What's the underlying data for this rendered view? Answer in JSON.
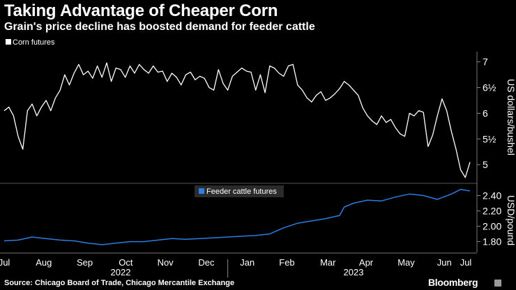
{
  "header": {
    "title": "Taking Advantage of Cheaper Corn",
    "subtitle": "Grain's price decline has boosted demand for feeder cattle"
  },
  "footer": {
    "source": "Source: Chicago Board of Trade, Chicago Mercantile Exchange",
    "brand": "Bloomberg"
  },
  "chart_data": [
    {
      "type": "line",
      "title": "Corn futures",
      "legend": "Corn futures",
      "legend_color": "#ffffff",
      "line_color": "#ffffff",
      "ylabel": "US dollars/bushel",
      "ylim": [
        4.65,
        7.2
      ],
      "yticks": [
        {
          "value": 5,
          "label": "5"
        },
        {
          "value": 5.5,
          "label": "5½"
        },
        {
          "value": 6,
          "label": "6"
        },
        {
          "value": 6.5,
          "label": "6½"
        },
        {
          "value": 7,
          "label": "7"
        }
      ],
      "xlim": [
        0,
        100
      ],
      "x": [
        0,
        1,
        2,
        3,
        4,
        5,
        6,
        7,
        8,
        9,
        10,
        11,
        12,
        13,
        14,
        15,
        16,
        17,
        18,
        19,
        20,
        21,
        22,
        23,
        24,
        25,
        26,
        27,
        28,
        29,
        30,
        31,
        32,
        33,
        34,
        35,
        36,
        37,
        38,
        39,
        40,
        41,
        42,
        43,
        44,
        45,
        46,
        47,
        48,
        49,
        50,
        51,
        52,
        53,
        54,
        55,
        56,
        57,
        58,
        59,
        60,
        61,
        62,
        63,
        64,
        65,
        66,
        67,
        68,
        69,
        70,
        71,
        72,
        73,
        74,
        75,
        76,
        77,
        78,
        79,
        80,
        81,
        82,
        83,
        84,
        85,
        86,
        87,
        88,
        89,
        90,
        91,
        92,
        93,
        94,
        95,
        96,
        97,
        98,
        99,
        100
      ],
      "values": [
        6.05,
        6.12,
        5.95,
        5.55,
        5.3,
        6.05,
        6.18,
        5.95,
        6.12,
        6.25,
        6.05,
        6.3,
        6.45,
        6.75,
        6.55,
        6.78,
        6.95,
        6.75,
        6.82,
        6.68,
        6.92,
        6.7,
        6.98,
        6.62,
        6.88,
        6.85,
        6.7,
        6.92,
        6.78,
        6.95,
        6.85,
        6.78,
        6.92,
        6.8,
        6.82,
        6.62,
        6.78,
        6.7,
        6.55,
        6.75,
        6.8,
        6.65,
        6.72,
        6.68,
        6.5,
        6.45,
        6.85,
        6.58,
        6.45,
        6.72,
        6.8,
        6.88,
        6.82,
        6.8,
        6.45,
        6.75,
        6.4,
        6.92,
        6.88,
        6.78,
        6.72,
        6.92,
        6.95,
        6.55,
        6.45,
        6.3,
        6.22,
        6.35,
        6.42,
        6.25,
        6.3,
        6.38,
        6.48,
        6.62,
        6.55,
        6.45,
        6.35,
        6.1,
        5.95,
        5.85,
        5.78,
        5.95,
        5.82,
        5.88,
        5.72,
        5.6,
        5.55,
        6.0,
        5.95,
        6.05,
        6.02,
        5.35,
        5.58,
        5.95,
        6.28,
        6.05,
        5.65,
        5.3,
        4.9,
        4.75,
        5.05
      ],
      "series_segments": [
        [
          0,
          90
        ],
        [
          91,
          100
        ]
      ]
    },
    {
      "type": "line",
      "title": "Feeder cattle futures",
      "legend": "Feeder cattle futures",
      "legend_color": "#2f7fe6",
      "line_color": "#2a7de1",
      "ylabel": "USD/pound",
      "ylim": [
        1.66,
        2.55
      ],
      "yticks": [
        {
          "value": 1.8,
          "label": "1.80"
        },
        {
          "value": 2.0,
          "label": "2.00"
        },
        {
          "value": 2.2,
          "label": "2.20"
        },
        {
          "value": 2.4,
          "label": "2.40"
        }
      ],
      "xlim": [
        0,
        100
      ],
      "x": [
        0,
        3,
        6,
        9,
        12,
        15,
        18,
        21,
        24,
        27,
        30,
        33,
        36,
        39,
        42,
        45,
        48,
        51,
        54,
        57,
        60,
        63,
        66,
        69,
        72,
        73,
        75,
        78,
        81,
        84,
        87,
        90,
        93,
        96,
        98,
        100
      ],
      "values": [
        1.81,
        1.82,
        1.86,
        1.84,
        1.82,
        1.81,
        1.78,
        1.76,
        1.78,
        1.8,
        1.8,
        1.82,
        1.84,
        1.83,
        1.84,
        1.85,
        1.86,
        1.87,
        1.88,
        1.9,
        1.98,
        2.04,
        2.07,
        2.1,
        2.14,
        2.25,
        2.3,
        2.34,
        2.33,
        2.38,
        2.42,
        2.4,
        2.35,
        2.42,
        2.48,
        2.46
      ],
      "xaxis": {
        "months": [
          "Jul",
          "Aug",
          "Sep",
          "Oct",
          "Nov",
          "Dec",
          "Jan",
          "Feb",
          "Mar",
          "Apr",
          "May",
          "Jun",
          "Jul"
        ],
        "month_x": [
          0,
          8.5,
          17.3,
          26.1,
          34.6,
          43.4,
          52.2,
          60.7,
          69.5,
          77.7,
          86.3,
          94.5,
          100.5
        ],
        "years": [
          {
            "label": "2022",
            "x": 25
          },
          {
            "label": "2023",
            "x": 75
          }
        ],
        "year_divider_x": 48
      }
    }
  ]
}
